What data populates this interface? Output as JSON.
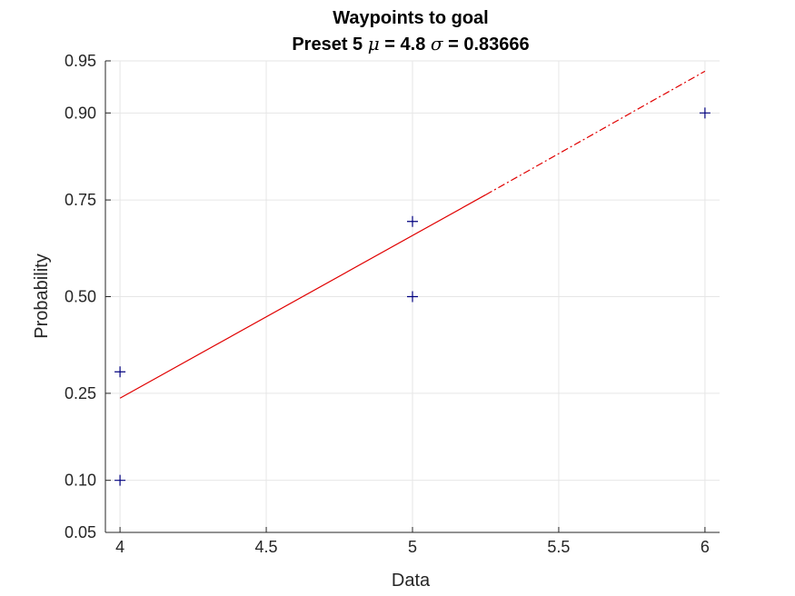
{
  "chart_data": {
    "type": "scatter",
    "title": "Waypoints to goal",
    "subtitle": {
      "prefix": "Preset 5 ",
      "mu_symbol": "μ",
      "mu_text": " = 4.8 ",
      "sigma_symbol": "σ",
      "sigma_text": " = 0.83666"
    },
    "xlabel": "Data",
    "ylabel": "Probability",
    "xlim": [
      3.95,
      6.05
    ],
    "ylim": [
      0.05,
      0.95
    ],
    "y_scale": "normal-probability",
    "grid": true,
    "x_ticks": [
      {
        "value": 4,
        "label": "4"
      },
      {
        "value": 4.5,
        "label": "4.5"
      },
      {
        "value": 5,
        "label": "5"
      },
      {
        "value": 5.5,
        "label": "5.5"
      },
      {
        "value": 6,
        "label": "6"
      }
    ],
    "y_ticks": [
      {
        "value": 0.05,
        "label": "0.05"
      },
      {
        "value": 0.1,
        "label": "0.10"
      },
      {
        "value": 0.25,
        "label": "0.25"
      },
      {
        "value": 0.5,
        "label": "0.50"
      },
      {
        "value": 0.75,
        "label": "0.75"
      },
      {
        "value": 0.9,
        "label": "0.90"
      },
      {
        "value": 0.95,
        "label": "0.95"
      }
    ],
    "series": [
      {
        "type": "scatter",
        "marker": "plus",
        "color": "#00007f",
        "points": [
          {
            "x": 4,
            "y": 0.1
          },
          {
            "x": 4,
            "y": 0.3
          },
          {
            "x": 5,
            "y": 0.5
          },
          {
            "x": 5,
            "y": 0.7
          },
          {
            "x": 6,
            "y": 0.9
          }
        ]
      },
      {
        "type": "line",
        "color": "#e00000",
        "style": "solid",
        "from": {
          "x": 4,
          "y": 0.2394
        },
        "to": {
          "x": 5.25,
          "y": 0.7612
        }
      },
      {
        "type": "line",
        "color": "#e00000",
        "style": "dash-dot",
        "from": {
          "x": 5.25,
          "y": 0.7612
        },
        "to": {
          "x": 6,
          "y": 0.9421
        }
      }
    ]
  }
}
